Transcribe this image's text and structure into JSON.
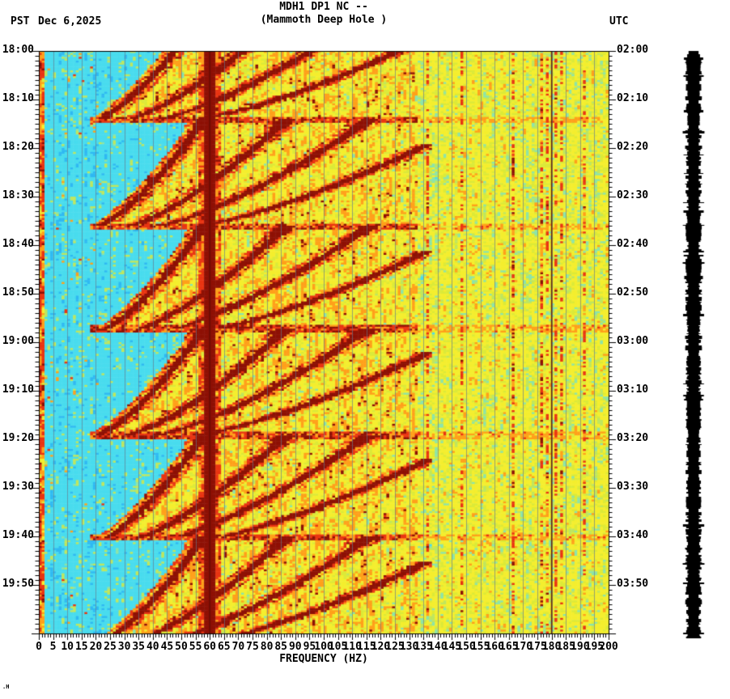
{
  "header": {
    "title": "MDH1 DP1 NC --",
    "subtitle": "(Mammoth Deep Hole )",
    "left_tz": "PST",
    "date": "Dec 6,2025",
    "right_tz": "UTC"
  },
  "corner_mark": ".H",
  "chart_data": {
    "type": "heatmap",
    "subtype": "seismic-spectrogram",
    "title": "MDH1 DP1 NC --",
    "subtitle": "(Mammoth Deep Hole )",
    "date_label": "Dec 6,2025",
    "x_axis": {
      "label": "FREQUENCY (HZ)",
      "min_hz": 0,
      "max_hz": 200,
      "major_tick_hz": 5,
      "minor_tick_hz": 1,
      "tick_labels": [
        "0",
        "5",
        "10",
        "15",
        "20",
        "25",
        "30",
        "35",
        "40",
        "45",
        "50",
        "55",
        "60",
        "65",
        "70",
        "75",
        "80",
        "85",
        "90",
        "95",
        "100",
        "105",
        "110",
        "115",
        "120",
        "125",
        "130",
        "135",
        "140",
        "145",
        "150",
        "155",
        "160",
        "165",
        "170",
        "175",
        "180",
        "185",
        "190",
        "195",
        "200"
      ]
    },
    "y_axis_left": {
      "timezone": "PST",
      "start": "18:00",
      "end": "20:00",
      "major_tick_min": 10,
      "minor_tick_min": 1,
      "tick_labels": [
        "18:00",
        "18:10",
        "18:20",
        "18:30",
        "18:40",
        "18:50",
        "19:00",
        "19:10",
        "19:20",
        "19:30",
        "19:40",
        "19:50"
      ]
    },
    "y_axis_right": {
      "timezone": "UTC",
      "start": "02:00",
      "end": "04:00",
      "major_tick_min": 10,
      "minor_tick_min": 1,
      "tick_labels": [
        "02:00",
        "02:10",
        "02:20",
        "02:30",
        "02:40",
        "02:50",
        "03:00",
        "03:10",
        "03:20",
        "03:30",
        "03:40",
        "03:50"
      ]
    },
    "duration_min": 120,
    "features": {
      "mains_line_hz": 60,
      "mains_harmonic_line_hz": 180,
      "microseism_band_hz": [
        0,
        2
      ],
      "low_quiet_band_hz": [
        2,
        22
      ],
      "texture_change_hz": 133,
      "glide_events": {
        "pattern": "repeating descending harmonic glides ending in broadband bursts",
        "onset_minutes_from_1800": [
          -8,
          14,
          36,
          57,
          79,
          100
        ],
        "onset_times_pst": [
          "17:52",
          "18:14",
          "18:36",
          "18:57",
          "19:19",
          "19:40"
        ],
        "cycle_duration_min": 22,
        "fundamental_start_hz": 58,
        "fundamental_end_hz": 20,
        "glide_exponent": 0.72,
        "harmonic_ratios": [
          1,
          1.5,
          2.0,
          2.65
        ],
        "onset_burst_width_factor": 1.8,
        "burst_band_hz": [
          18,
          133
        ]
      },
      "right_zone_hot_column_probability": 0.09
    },
    "grid": {
      "vertical_every_hz": 5,
      "color": "#64788c"
    },
    "palette": {
      "blue": "#1274f2",
      "cyan": "#2fb9f2",
      "cyan_light": "#49dcee",
      "green": "#bfe65e",
      "yellow": "#f4ee2e",
      "orange": "#ffa01a",
      "red": "#e93512",
      "dark_red": "#8e1105",
      "background": "#ffffff",
      "axis": "#000000"
    },
    "legend": "none",
    "waveform_bar": {
      "color": "#000000",
      "style": "clipped amplitude trace, right margin"
    }
  }
}
